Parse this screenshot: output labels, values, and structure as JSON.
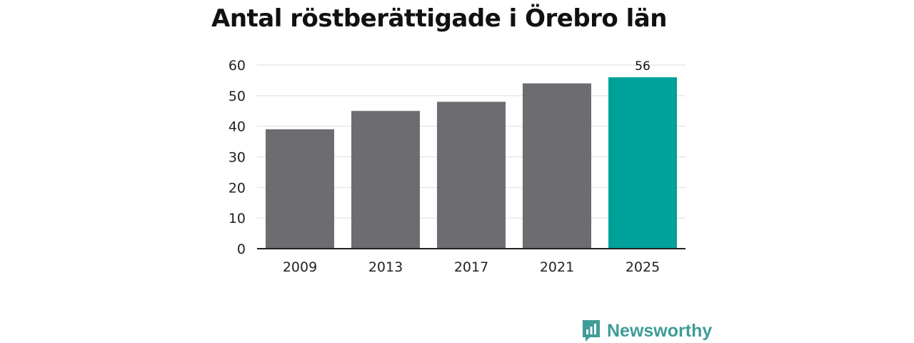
{
  "chart_data": {
    "type": "bar",
    "title": "Antal röstberättigade i Örebro län",
    "categories": [
      "2009",
      "2013",
      "2017",
      "2021",
      "2025"
    ],
    "values": [
      39,
      45,
      48,
      54,
      56
    ],
    "data_labels": [
      null,
      null,
      null,
      null,
      "56"
    ],
    "ylim": [
      0,
      60
    ],
    "yticks": [
      "0",
      "10",
      "20",
      "30",
      "40",
      "50",
      "60"
    ],
    "xlabel": "",
    "ylabel": "",
    "grid": true,
    "legend": "none",
    "colors": {
      "default_bar": "#6d6c71",
      "highlight_bar": "#00a19a",
      "grid": "#dddddd",
      "axis": "#222222"
    },
    "highlight_index": 4
  },
  "brand": {
    "name": "Newsworthy",
    "icon": "newsworthy-logo-icon",
    "color": "#3f9c96"
  }
}
